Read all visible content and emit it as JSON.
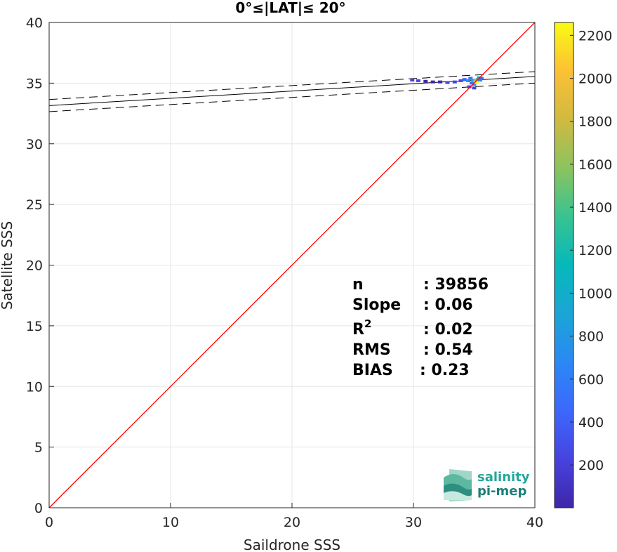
{
  "chart_data": {
    "type": "scatter",
    "title": "0°≤|LAT|≤ 20°",
    "xlabel": "Saildrone SSS",
    "ylabel": "Satellite SSS",
    "xlim": [
      0,
      40
    ],
    "ylim": [
      0,
      40
    ],
    "xticks": [
      "0",
      "10",
      "20",
      "30",
      "40"
    ],
    "yticks": [
      "0",
      "5",
      "10",
      "15",
      "20",
      "25",
      "30",
      "35",
      "40"
    ],
    "grid": true,
    "one_to_one_line": {
      "color": "#ff0000",
      "from": [
        0,
        0
      ],
      "to": [
        40,
        40
      ]
    },
    "regression": {
      "fit": {
        "x": [
          0,
          40
        ],
        "y": [
          33.15,
          35.55
        ]
      },
      "upper": {
        "x": [
          0,
          40
        ],
        "y": [
          33.65,
          35.95
        ]
      },
      "lower": {
        "x": [
          0,
          40
        ],
        "y": [
          32.65,
          35.0
        ]
      }
    },
    "density_points": [
      {
        "x": 29.9,
        "y": 35.25,
        "count": 150
      },
      {
        "x": 30.4,
        "y": 35.2,
        "count": 120
      },
      {
        "x": 31.0,
        "y": 35.15,
        "count": 100
      },
      {
        "x": 31.6,
        "y": 35.1,
        "count": 90
      },
      {
        "x": 32.2,
        "y": 35.1,
        "count": 100
      },
      {
        "x": 32.8,
        "y": 35.05,
        "count": 130
      },
      {
        "x": 33.4,
        "y": 35.1,
        "count": 200
      },
      {
        "x": 33.9,
        "y": 35.2,
        "count": 250
      },
      {
        "x": 34.2,
        "y": 35.3,
        "count": 350
      },
      {
        "x": 34.5,
        "y": 35.2,
        "count": 600
      },
      {
        "x": 34.7,
        "y": 35.4,
        "count": 500
      },
      {
        "x": 34.8,
        "y": 35.0,
        "count": 400
      },
      {
        "x": 34.9,
        "y": 35.25,
        "count": 900
      },
      {
        "x": 35.0,
        "y": 34.9,
        "count": 700
      },
      {
        "x": 35.1,
        "y": 35.2,
        "count": 1600
      },
      {
        "x": 35.2,
        "y": 35.05,
        "count": 2200
      },
      {
        "x": 35.3,
        "y": 35.3,
        "count": 1300
      },
      {
        "x": 35.4,
        "y": 35.45,
        "count": 800
      },
      {
        "x": 35.5,
        "y": 35.25,
        "count": 600
      },
      {
        "x": 35.6,
        "y": 35.4,
        "count": 400
      },
      {
        "x": 34.6,
        "y": 34.7,
        "count": 300
      },
      {
        "x": 35.0,
        "y": 34.6,
        "count": 250
      }
    ],
    "colorbar": {
      "min": 1,
      "max": 2260,
      "ticks": [
        "200",
        "400",
        "600",
        "800",
        "1000",
        "1200",
        "1400",
        "1600",
        "1800",
        "2000",
        "2200"
      ],
      "colormap": [
        "#3e26a8",
        "#4743e0",
        "#3d68fd",
        "#2b88f4",
        "#1ba5d6",
        "#06b8ba",
        "#38c391",
        "#8cc35f",
        "#d0ba40",
        "#fcc034",
        "#f9fb15"
      ]
    },
    "stats": [
      {
        "label": "n",
        "value": ": 39856"
      },
      {
        "label": "Slope",
        "value": ": 0.06"
      },
      {
        "label": "R",
        "sup": "2",
        "value": ": 0.02"
      },
      {
        "label": "RMS",
        "value": ": 0.54"
      },
      {
        "label": "BIAS",
        "value": ": 0.23"
      }
    ]
  },
  "logo": {
    "line1": "salinity",
    "line2": "pi-mep"
  }
}
